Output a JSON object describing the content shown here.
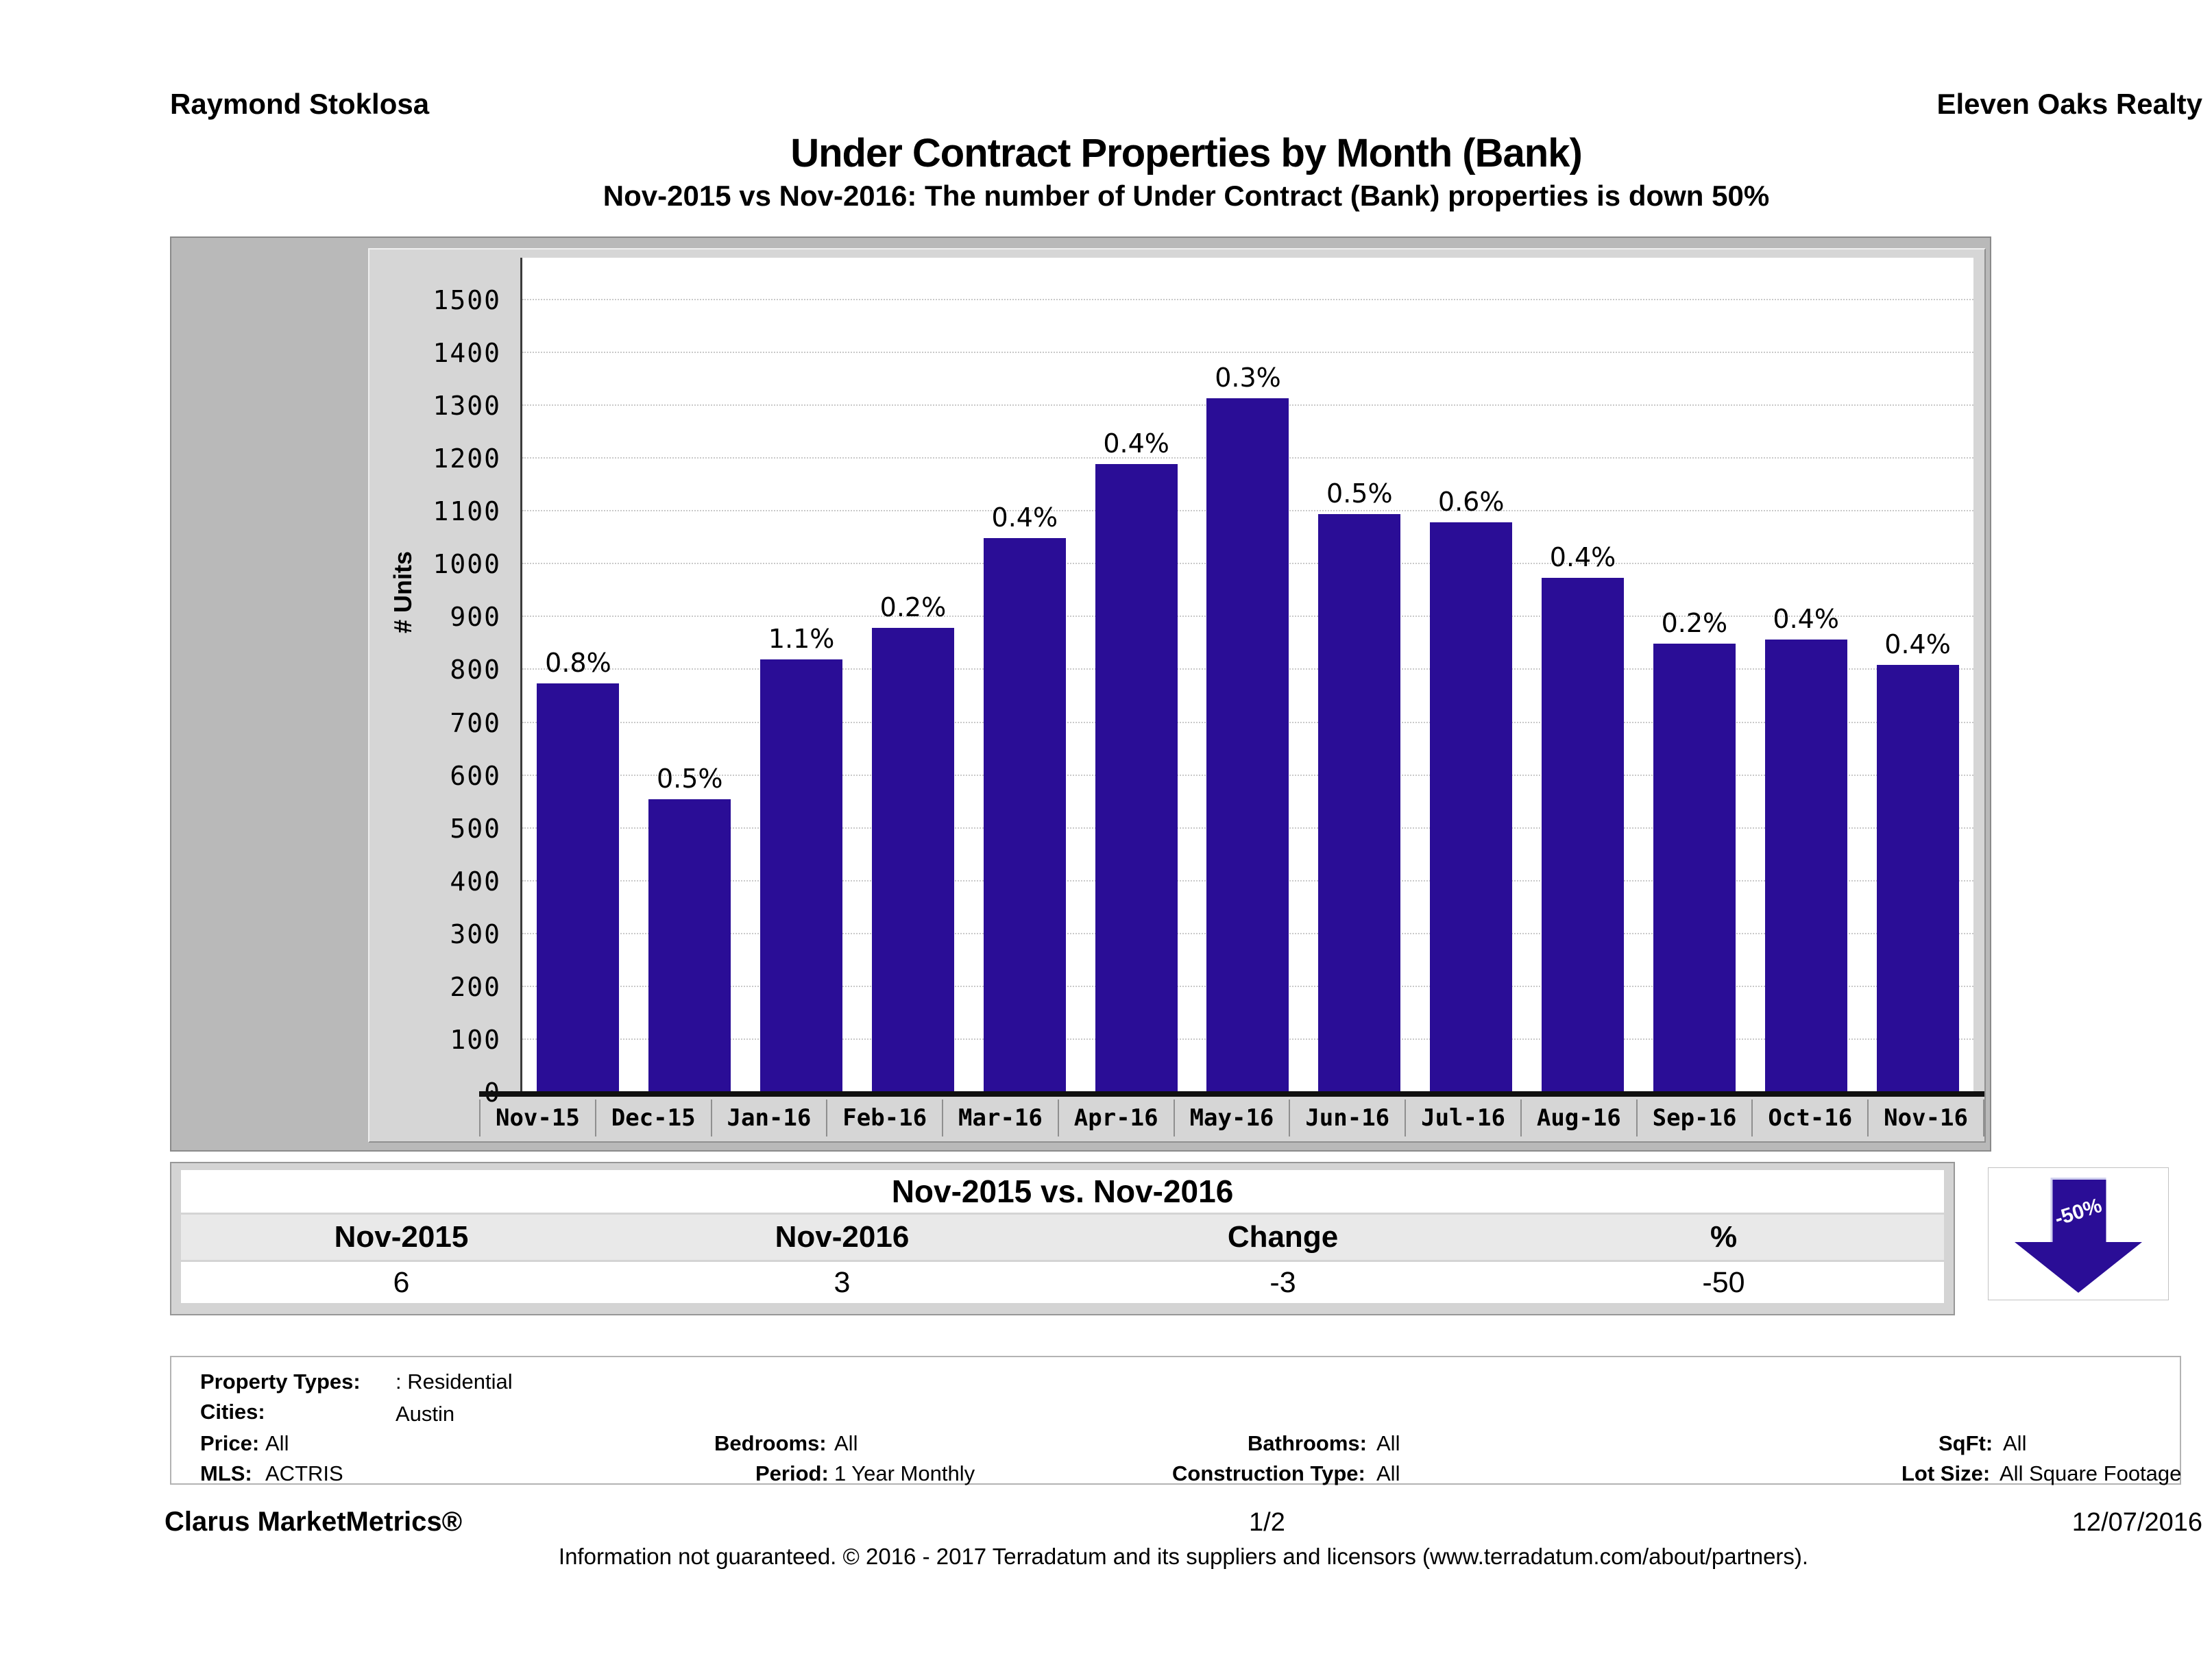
{
  "header": {
    "agent": "Raymond Stoklosa",
    "company": "Eleven Oaks Realty",
    "title": "Under Contract Properties by Month (Bank)",
    "subtitle": "Nov-2015 vs Nov-2016: The number of Under Contract (Bank)  properties is down 50%"
  },
  "chart_data": {
    "type": "bar",
    "title": "Under Contract Properties by Month (Bank)",
    "xlabel": "",
    "ylabel": "# Units",
    "ylim": [
      0,
      1500
    ],
    "ytick_step": 100,
    "grid": "horizontal dotted gridlines every 100 units",
    "legend_position": "none",
    "categories": [
      "Nov-15",
      "Dec-15",
      "Jan-16",
      "Feb-16",
      "Mar-16",
      "Apr-16",
      "May-16",
      "Jun-16",
      "Jul-16",
      "Aug-16",
      "Sep-16",
      "Oct-16",
      "Nov-16"
    ],
    "values": [
      775,
      555,
      820,
      880,
      1050,
      1190,
      1315,
      1095,
      1080,
      975,
      850,
      858,
      810
    ],
    "bar_labels": [
      "0.8%",
      "0.5%",
      "1.1%",
      "0.2%",
      "0.4%",
      "0.4%",
      "0.3%",
      "0.5%",
      "0.6%",
      "0.4%",
      "0.2%",
      "0.4%",
      "0.4%"
    ],
    "bar_color": "#2a0d96"
  },
  "comparison": {
    "title": "Nov-2015 vs. Nov-2016",
    "headers": [
      "Nov-2015",
      "Nov-2016",
      "Change",
      "%"
    ],
    "values": [
      "6",
      "3",
      "-3",
      "-50"
    ],
    "arrow_label": "-50%",
    "arrow_direction": "down"
  },
  "filters": {
    "property_types_label": "Property Types:",
    "property_types_value": ": Residential",
    "cities_label": "Cities:",
    "cities_value": "Austin",
    "price_label": "Price:",
    "price_value": "All",
    "bedrooms_label": "Bedrooms:",
    "bedrooms_value": "All",
    "bathrooms_label": "Bathrooms:",
    "bathrooms_value": "All",
    "sqft_label": "SqFt:",
    "sqft_value": "All",
    "mls_label": "MLS:",
    "mls_value": "ACTRIS",
    "period_label": "Period:",
    "period_value": "1 Year Monthly",
    "construction_label": "Construction Type:",
    "construction_value": "All",
    "lot_label": "Lot Size:",
    "lot_value": "All Square Footage"
  },
  "footer": {
    "brand": "Clarus MarketMetrics®",
    "page": "1/2",
    "date": "12/07/2016",
    "disclaimer": "Information not guaranteed. © 2016 - 2017 Terradatum and its suppliers and licensors (www.terradatum.com/about/partners)."
  }
}
